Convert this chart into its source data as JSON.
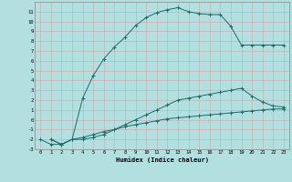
{
  "xlabel": "Humidex (Indice chaleur)",
  "background_color": "#b2e0e0",
  "grid_color": "#c8d8d8",
  "line_color": "#1a6b6b",
  "xlim": [
    -0.5,
    23.5
  ],
  "ylim": [
    -3,
    12
  ],
  "xticks": [
    0,
    1,
    2,
    3,
    4,
    5,
    6,
    7,
    8,
    9,
    10,
    11,
    12,
    13,
    14,
    15,
    16,
    17,
    18,
    19,
    20,
    21,
    22,
    23
  ],
  "yticks": [
    -3,
    -2,
    -1,
    0,
    1,
    2,
    3,
    4,
    5,
    6,
    7,
    8,
    9,
    10,
    11
  ],
  "line1_x": [
    1,
    2,
    3,
    4,
    5,
    6,
    7,
    8,
    9,
    10,
    11,
    12,
    13,
    14,
    15,
    16,
    17,
    18,
    19,
    20,
    21,
    22,
    23
  ],
  "line1_y": [
    -2,
    -2.5,
    -2,
    -1.8,
    -1.5,
    -1.2,
    -1.0,
    -0.7,
    -0.5,
    -0.3,
    -0.1,
    0.1,
    0.2,
    0.3,
    0.4,
    0.5,
    0.6,
    0.7,
    0.8,
    0.9,
    1.0,
    1.1,
    1.1
  ],
  "line2_x": [
    1,
    2,
    3,
    4,
    5,
    6,
    7,
    8,
    9,
    10,
    11,
    12,
    13,
    14,
    15,
    16,
    17,
    18,
    19,
    20,
    21,
    22,
    23
  ],
  "line2_y": [
    -2,
    -2.5,
    -2,
    -2,
    -1.8,
    -1.5,
    -1.0,
    -0.5,
    0.0,
    0.5,
    1.0,
    1.5,
    2.0,
    2.2,
    2.4,
    2.6,
    2.8,
    3.0,
    3.2,
    2.4,
    1.8,
    1.4,
    1.3
  ],
  "line3_x": [
    0,
    1,
    2,
    3,
    4,
    5,
    6,
    7,
    8,
    9,
    10,
    11,
    12,
    13,
    14,
    15,
    16,
    17,
    18,
    19,
    20,
    21,
    22,
    23
  ],
  "line3_y": [
    -2,
    -2.5,
    -2.5,
    -2,
    2.2,
    4.5,
    6.2,
    7.4,
    8.4,
    9.6,
    10.4,
    10.9,
    11.2,
    11.4,
    11.0,
    10.8,
    10.7,
    10.7,
    9.5,
    7.6,
    7.6,
    7.6,
    7.6,
    7.6
  ]
}
